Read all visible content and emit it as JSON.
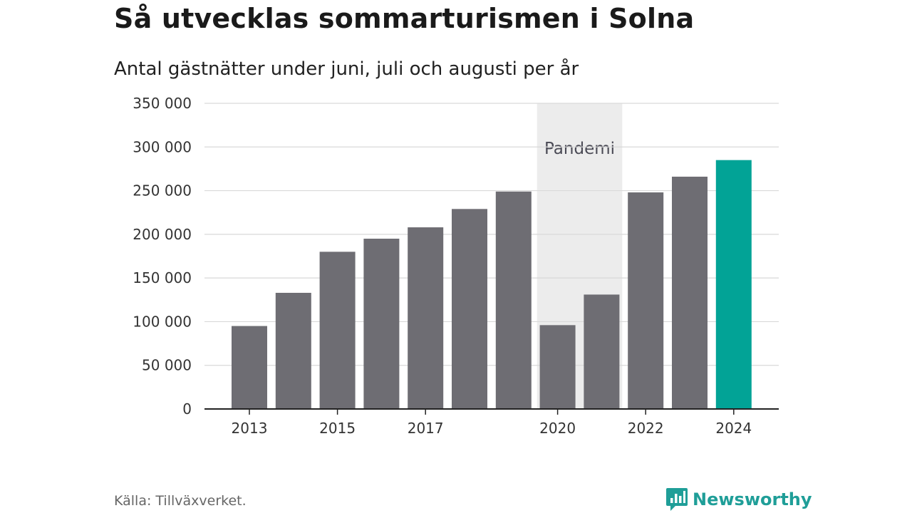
{
  "title": "Så utvecklas sommarturismen i Solna",
  "subtitle": "Antal gästnätter under juni, juli och augusti per år",
  "source": "Källa: Tillväxverket.",
  "brand": {
    "name": "Newsworthy",
    "icon": "newsworthy-logo-icon",
    "color": "#1f9e98"
  },
  "chart_data": {
    "type": "bar",
    "categories": [
      "2013",
      "2014",
      "2015",
      "2016",
      "2017",
      "2018",
      "2019",
      "2020",
      "2021",
      "2022",
      "2023",
      "2024"
    ],
    "values": [
      95000,
      133000,
      180000,
      195000,
      208000,
      229000,
      249000,
      96000,
      131000,
      248000,
      266000,
      285000
    ],
    "x_tick_labels": [
      "2013",
      "",
      "2015",
      "",
      "2017",
      "",
      "",
      "2020",
      "",
      "2022",
      "",
      "2024"
    ],
    "y_ticks": [
      0,
      50000,
      100000,
      150000,
      200000,
      250000,
      300000,
      350000
    ],
    "y_tick_labels": [
      "0",
      "50 000",
      "100 000",
      "150 000",
      "200 000",
      "250 000",
      "300 000",
      "350 000"
    ],
    "ylim": [
      0,
      350000
    ],
    "grid": true,
    "colors": {
      "bar": "#6e6d73",
      "highlight": "#02a396",
      "band": "#ececec"
    },
    "highlight_index": 11,
    "band": {
      "label": "Pandemi",
      "from_index": 7,
      "to_index": 8
    }
  }
}
